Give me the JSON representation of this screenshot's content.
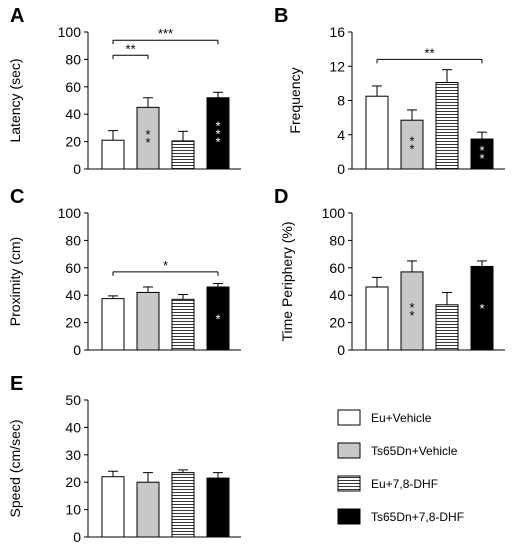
{
  "chart_data": [
    {
      "type": "bar",
      "panel": "A",
      "ylabel": "Latency (sec)",
      "ylim": [
        0,
        100
      ],
      "yticks": [
        "0",
        "20",
        "40",
        "60",
        "80",
        "100"
      ],
      "categories": [
        "Eu+Vehicle",
        "Ts65Dn+Vehicle",
        "Eu+7,8-DHF",
        "Ts65Dn+7,8-DHF"
      ],
      "values": [
        21,
        45,
        20.5,
        52
      ],
      "errors": [
        7,
        7,
        7,
        4
      ],
      "bar_stars": [
        "",
        "**",
        "",
        "***"
      ],
      "brackets": [
        {
          "from": 0,
          "to": 1,
          "label": "**",
          "y": 83
        },
        {
          "from": 0,
          "to": 3,
          "label": "***",
          "y": 94
        }
      ]
    },
    {
      "type": "bar",
      "panel": "B",
      "ylabel": "Frequency",
      "ylim": [
        0,
        16
      ],
      "yticks": [
        "0",
        "4",
        "8",
        "12",
        "16"
      ],
      "categories": [
        "Eu+Vehicle",
        "Ts65Dn+Vehicle",
        "Eu+7,8-DHF",
        "Ts65Dn+7,8-DHF"
      ],
      "values": [
        8.5,
        5.7,
        10.1,
        3.5
      ],
      "errors": [
        1.2,
        1.2,
        1.5,
        0.8
      ],
      "bar_stars": [
        "",
        "**",
        "",
        "**"
      ],
      "brackets": [
        {
          "from": 0,
          "to": 3,
          "label": "**",
          "y": 12.8
        }
      ]
    },
    {
      "type": "bar",
      "panel": "C",
      "ylabel": "Proximity (cm)",
      "ylim": [
        0,
        100
      ],
      "yticks": [
        "0",
        "20",
        "40",
        "60",
        "80",
        "100"
      ],
      "categories": [
        "Eu+Vehicle",
        "Ts65Dn+Vehicle",
        "Eu+7,8-DHF",
        "Ts65Dn+7,8-DHF"
      ],
      "values": [
        37.5,
        42,
        37,
        46
      ],
      "errors": [
        2,
        4,
        3.5,
        2.5
      ],
      "bar_stars": [
        "",
        "",
        "",
        "*"
      ],
      "brackets": [
        {
          "from": 0,
          "to": 3,
          "label": "*",
          "y": 57
        }
      ]
    },
    {
      "type": "bar",
      "panel": "D",
      "ylabel": "Time Periphery (%)",
      "ylim": [
        0,
        100
      ],
      "yticks": [
        "0",
        "20",
        "40",
        "60",
        "80",
        "100"
      ],
      "categories": [
        "Eu+Vehicle",
        "Ts65Dn+Vehicle",
        "Eu+7,8-DHF",
        "Ts65Dn+7,8-DHF"
      ],
      "values": [
        46,
        57,
        33,
        61
      ],
      "errors": [
        7,
        8,
        9,
        4
      ],
      "bar_stars": [
        "",
        "**",
        "",
        "*"
      ],
      "brackets": []
    },
    {
      "type": "bar",
      "panel": "E",
      "ylabel": "Speed (cm/sec)",
      "ylim": [
        0,
        50
      ],
      "yticks": [
        "0",
        "10",
        "20",
        "30",
        "40",
        "50"
      ],
      "categories": [
        "Eu+Vehicle",
        "Ts65Dn+Vehicle",
        "Eu+7,8-DHF",
        "Ts65Dn+7,8-DHF"
      ],
      "values": [
        22,
        20,
        23.5,
        21.5
      ],
      "errors": [
        2,
        3.5,
        1,
        2
      ],
      "bar_stars": [
        "",
        "",
        "",
        ""
      ],
      "brackets": []
    }
  ],
  "legend": {
    "entries": [
      {
        "label": "Eu+Vehicle",
        "style": "white"
      },
      {
        "label": "Ts65Dn+Vehicle",
        "style": "gray"
      },
      {
        "label": "Eu+7,8-DHF",
        "style": "striped"
      },
      {
        "label": "Ts65Dn+7,8-DHF",
        "style": "black"
      }
    ]
  },
  "colors": {
    "white": "#ffffff",
    "gray": "#c8c8c8",
    "black": "#000000",
    "axis": "#000000"
  }
}
